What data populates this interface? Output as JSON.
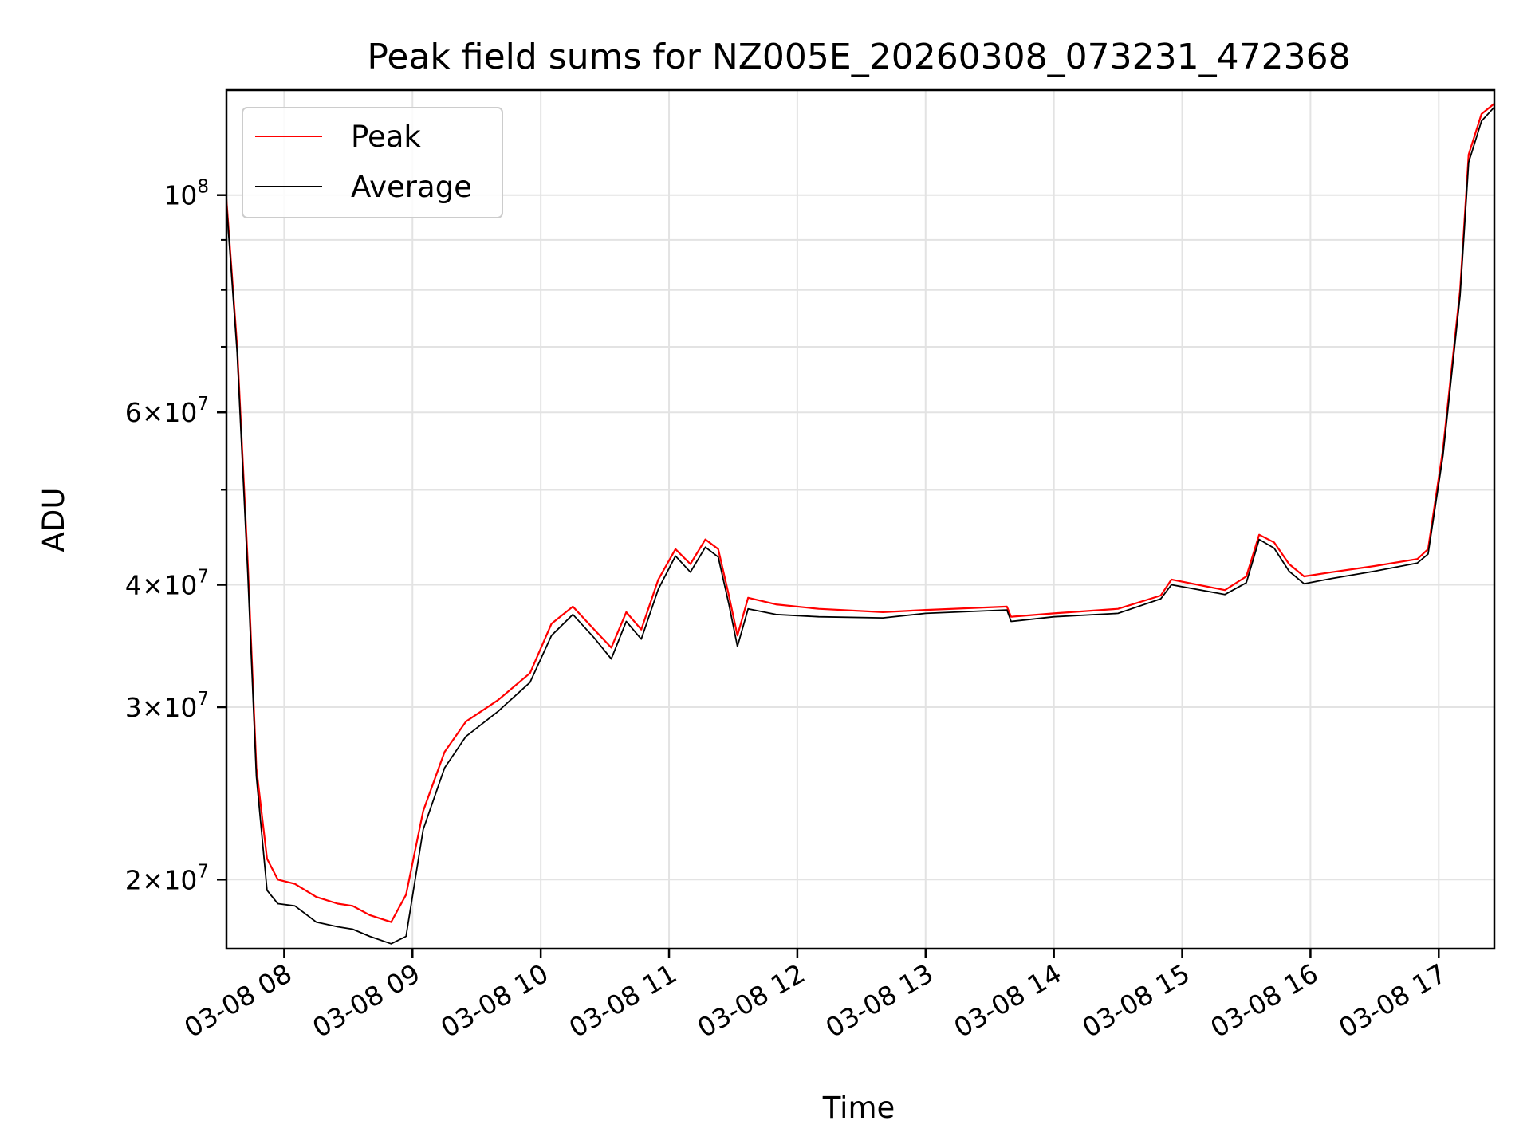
{
  "chart_data": {
    "type": "line",
    "title": "Peak field sums for NZ005E_20260308_073231_472368",
    "xlabel": "Time",
    "ylabel": "ADU",
    "yscale": "log",
    "grid": true,
    "legend": "upper-left",
    "xlim": [
      "2026-03-08 07:33",
      "2026-03-08 17:26"
    ],
    "ylim": [
      17000000,
      128000000
    ],
    "x_ticks": [
      {
        "value": "2026-03-08 08:00",
        "label": "03-08 08"
      },
      {
        "value": "2026-03-08 09:00",
        "label": "03-08 09"
      },
      {
        "value": "2026-03-08 10:00",
        "label": "03-08 10"
      },
      {
        "value": "2026-03-08 11:00",
        "label": "03-08 11"
      },
      {
        "value": "2026-03-08 12:00",
        "label": "03-08 12"
      },
      {
        "value": "2026-03-08 13:00",
        "label": "03-08 13"
      },
      {
        "value": "2026-03-08 14:00",
        "label": "03-08 14"
      },
      {
        "value": "2026-03-08 15:00",
        "label": "03-08 15"
      },
      {
        "value": "2026-03-08 16:00",
        "label": "03-08 16"
      },
      {
        "value": "2026-03-08 17:00",
        "label": "03-08 17"
      }
    ],
    "y_ticks": [
      {
        "value": 20000000,
        "base": "2×10",
        "exp": "7"
      },
      {
        "value": 30000000,
        "base": "3×10",
        "exp": "7"
      },
      {
        "value": 40000000,
        "base": "4×10",
        "exp": "7"
      },
      {
        "value": 60000000,
        "base": "6×10",
        "exp": "7"
      },
      {
        "value": 100000000,
        "base": "10",
        "exp": "8"
      }
    ],
    "y_minor_ticks": [
      50000000,
      70000000,
      80000000,
      90000000
    ],
    "series": [
      {
        "name": "Peak",
        "color": "#ff0000",
        "x": [
          "2026-03-08 07:33",
          "2026-03-08 07:38",
          "2026-03-08 07:43",
          "2026-03-08 07:47",
          "2026-03-08 07:52",
          "2026-03-08 07:57",
          "2026-03-08 08:05",
          "2026-03-08 08:15",
          "2026-03-08 08:25",
          "2026-03-08 08:32",
          "2026-03-08 08:40",
          "2026-03-08 08:50",
          "2026-03-08 08:57",
          "2026-03-08 09:05",
          "2026-03-08 09:15",
          "2026-03-08 09:25",
          "2026-03-08 09:40",
          "2026-03-08 09:55",
          "2026-03-08 10:05",
          "2026-03-08 10:15",
          "2026-03-08 10:25",
          "2026-03-08 10:33",
          "2026-03-08 10:40",
          "2026-03-08 10:47",
          "2026-03-08 10:55",
          "2026-03-08 11:03",
          "2026-03-08 11:10",
          "2026-03-08 11:17",
          "2026-03-08 11:23",
          "2026-03-08 11:28",
          "2026-03-08 11:32",
          "2026-03-08 11:37",
          "2026-03-08 11:50",
          "2026-03-08 12:10",
          "2026-03-08 12:40",
          "2026-03-08 13:00",
          "2026-03-08 13:38",
          "2026-03-08 13:40",
          "2026-03-08 14:00",
          "2026-03-08 14:30",
          "2026-03-08 14:50",
          "2026-03-08 14:55",
          "2026-03-08 15:20",
          "2026-03-08 15:30",
          "2026-03-08 15:36",
          "2026-03-08 15:43",
          "2026-03-08 15:50",
          "2026-03-08 15:57",
          "2026-03-08 16:10",
          "2026-03-08 16:30",
          "2026-03-08 16:50",
          "2026-03-08 16:55",
          "2026-03-08 17:02",
          "2026-03-08 17:10",
          "2026-03-08 17:14",
          "2026-03-08 17:20",
          "2026-03-08 17:26"
        ],
        "y": [
          99000000,
          70000000,
          42000000,
          26000000,
          21000000,
          20000000,
          19800000,
          19200000,
          18900000,
          18800000,
          18400000,
          18100000,
          19300000,
          23500000,
          27000000,
          29000000,
          30500000,
          32500000,
          36500000,
          38000000,
          36000000,
          34500000,
          37500000,
          36000000,
          40500000,
          43500000,
          42000000,
          44500000,
          43500000,
          39000000,
          35500000,
          38800000,
          38200000,
          37800000,
          37500000,
          37700000,
          38000000,
          37100000,
          37400000,
          37800000,
          39000000,
          40500000,
          39500000,
          40800000,
          45000000,
          44200000,
          42000000,
          40800000,
          41200000,
          41800000,
          42500000,
          43500000,
          55000000,
          80000000,
          110000000,
          121000000,
          124000000
        ]
      },
      {
        "name": "Average",
        "color": "#000000",
        "x": [
          "2026-03-08 07:33",
          "2026-03-08 07:38",
          "2026-03-08 07:43",
          "2026-03-08 07:47",
          "2026-03-08 07:52",
          "2026-03-08 07:57",
          "2026-03-08 08:05",
          "2026-03-08 08:15",
          "2026-03-08 08:25",
          "2026-03-08 08:32",
          "2026-03-08 08:40",
          "2026-03-08 08:50",
          "2026-03-08 08:57",
          "2026-03-08 09:05",
          "2026-03-08 09:15",
          "2026-03-08 09:25",
          "2026-03-08 09:40",
          "2026-03-08 09:55",
          "2026-03-08 10:05",
          "2026-03-08 10:15",
          "2026-03-08 10:25",
          "2026-03-08 10:33",
          "2026-03-08 10:40",
          "2026-03-08 10:47",
          "2026-03-08 10:55",
          "2026-03-08 11:03",
          "2026-03-08 11:10",
          "2026-03-08 11:17",
          "2026-03-08 11:23",
          "2026-03-08 11:28",
          "2026-03-08 11:32",
          "2026-03-08 11:37",
          "2026-03-08 11:50",
          "2026-03-08 12:10",
          "2026-03-08 12:40",
          "2026-03-08 13:00",
          "2026-03-08 13:38",
          "2026-03-08 13:40",
          "2026-03-08 14:00",
          "2026-03-08 14:30",
          "2026-03-08 14:50",
          "2026-03-08 14:55",
          "2026-03-08 15:20",
          "2026-03-08 15:30",
          "2026-03-08 15:36",
          "2026-03-08 15:43",
          "2026-03-08 15:50",
          "2026-03-08 15:57",
          "2026-03-08 16:10",
          "2026-03-08 16:30",
          "2026-03-08 16:50",
          "2026-03-08 16:55",
          "2026-03-08 17:02",
          "2026-03-08 17:10",
          "2026-03-08 17:14",
          "2026-03-08 17:20",
          "2026-03-08 17:26"
        ],
        "y": [
          98000000,
          69000000,
          41000000,
          25500000,
          19500000,
          18900000,
          18800000,
          18100000,
          17900000,
          17800000,
          17500000,
          17200000,
          17500000,
          22500000,
          26000000,
          28000000,
          29700000,
          31800000,
          35500000,
          37300000,
          35300000,
          33600000,
          36700000,
          35200000,
          39600000,
          42800000,
          41200000,
          43700000,
          42700000,
          38200000,
          34600000,
          37800000,
          37300000,
          37100000,
          37000000,
          37400000,
          37700000,
          36700000,
          37100000,
          37400000,
          38700000,
          40000000,
          39100000,
          40200000,
          44500000,
          43600000,
          41300000,
          40100000,
          40600000,
          41300000,
          42100000,
          43000000,
          54200000,
          79000000,
          108000000,
          119000000,
          123000000
        ]
      }
    ]
  }
}
